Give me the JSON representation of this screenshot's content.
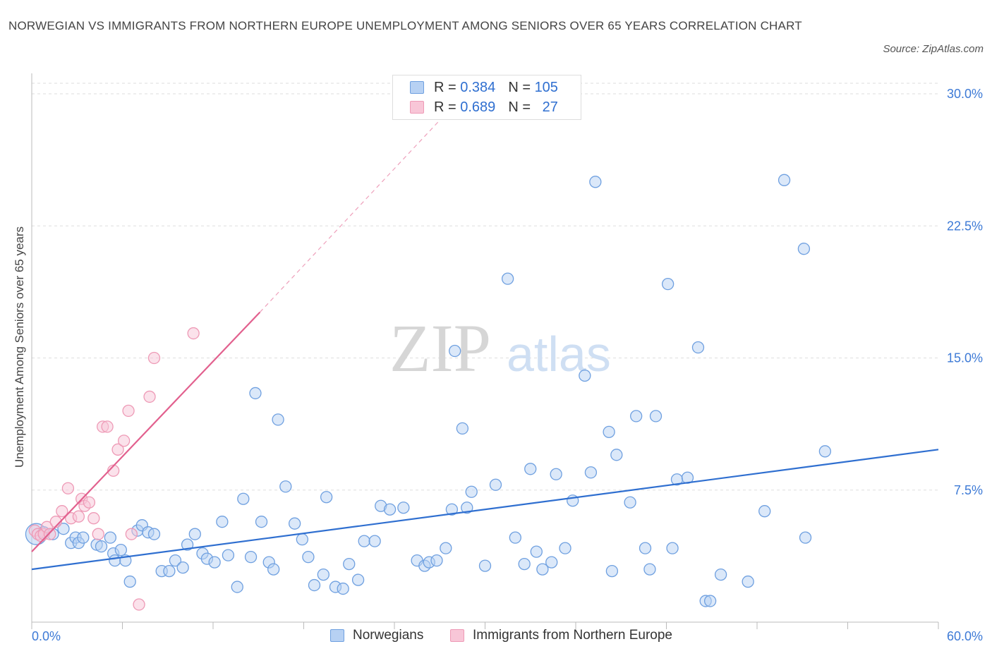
{
  "title": "NORWEGIAN VS IMMIGRANTS FROM NORTHERN EUROPE UNEMPLOYMENT AMONG SENIORS OVER 65 YEARS CORRELATION CHART",
  "source": "Source: ZipAtlas.com",
  "watermark": {
    "zip": "ZIP",
    "atlas": "atlas"
  },
  "legend": {
    "rows": [
      {
        "r_label": "R =",
        "r_value": "0.384",
        "n_label": "N =",
        "n_value": "105"
      },
      {
        "r_label": "R =",
        "r_value": "0.689",
        "n_label": "N =",
        "n_value": "27"
      }
    ]
  },
  "chart_data": {
    "type": "scatter",
    "title": "NORWEGIAN VS IMMIGRANTS FROM NORTHERN EUROPE UNEMPLOYMENT AMONG SENIORS OVER 65 YEARS CORRELATION CHART",
    "xlabel": "",
    "ylabel": "Unemployment Among Seniors over 65 years",
    "xlim": [
      0,
      60
    ],
    "ylim": [
      0,
      30
    ],
    "x_tick_labels": [
      "0.0%",
      "60.0%"
    ],
    "y_ticks": [
      7.5,
      15.0,
      22.5,
      30.0
    ],
    "y_tick_labels": [
      "7.5%",
      "15.0%",
      "22.5%",
      "30.0%"
    ],
    "grid": true,
    "legend_position": "top-center",
    "series": [
      {
        "name": "Norwegians",
        "color": "#6fa0e0",
        "fill": "#b7d1f3",
        "line_color": "#2f6fd0",
        "r": 0.384,
        "n": 105,
        "trend": {
          "x": [
            0,
            60
          ],
          "y": [
            3.0,
            9.8
          ]
        },
        "points": [
          [
            0.3,
            5.0
          ],
          [
            0.8,
            5.1
          ],
          [
            1.4,
            5.0
          ],
          [
            2.1,
            5.3
          ],
          [
            2.6,
            4.5
          ],
          [
            2.9,
            4.8
          ],
          [
            3.1,
            4.5
          ],
          [
            3.4,
            4.8
          ],
          [
            4.3,
            4.4
          ],
          [
            4.6,
            4.3
          ],
          [
            5.2,
            4.8
          ],
          [
            5.4,
            3.9
          ],
          [
            5.5,
            3.5
          ],
          [
            5.9,
            4.1
          ],
          [
            6.2,
            3.5
          ],
          [
            6.5,
            2.3
          ],
          [
            7.0,
            5.2
          ],
          [
            7.3,
            5.5
          ],
          [
            7.7,
            5.1
          ],
          [
            8.1,
            5.0
          ],
          [
            8.6,
            2.9
          ],
          [
            9.1,
            2.9
          ],
          [
            9.5,
            3.5
          ],
          [
            10.0,
            3.1
          ],
          [
            10.3,
            4.4
          ],
          [
            10.8,
            5.0
          ],
          [
            11.3,
            3.9
          ],
          [
            11.6,
            3.6
          ],
          [
            12.1,
            3.4
          ],
          [
            12.6,
            5.7
          ],
          [
            13.0,
            3.8
          ],
          [
            13.6,
            2.0
          ],
          [
            14.0,
            7.0
          ],
          [
            14.5,
            3.7
          ],
          [
            14.8,
            13.0
          ],
          [
            15.2,
            5.7
          ],
          [
            15.7,
            3.4
          ],
          [
            16.0,
            3.0
          ],
          [
            16.3,
            11.5
          ],
          [
            16.8,
            7.7
          ],
          [
            17.4,
            5.6
          ],
          [
            17.9,
            4.7
          ],
          [
            18.3,
            3.7
          ],
          [
            18.7,
            2.1
          ],
          [
            19.3,
            2.7
          ],
          [
            19.5,
            7.1
          ],
          [
            20.1,
            2.0
          ],
          [
            20.6,
            1.9
          ],
          [
            21.0,
            3.3
          ],
          [
            21.6,
            2.4
          ],
          [
            22.0,
            4.6
          ],
          [
            22.7,
            4.6
          ],
          [
            23.1,
            6.6
          ],
          [
            23.7,
            6.4
          ],
          [
            24.6,
            6.5
          ],
          [
            25.5,
            3.5
          ],
          [
            26.0,
            3.2
          ],
          [
            26.3,
            3.4
          ],
          [
            26.8,
            3.5
          ],
          [
            27.4,
            4.2
          ],
          [
            27.8,
            6.4
          ],
          [
            28.0,
            15.4
          ],
          [
            28.5,
            11.0
          ],
          [
            28.8,
            6.5
          ],
          [
            29.1,
            7.4
          ],
          [
            30.0,
            3.2
          ],
          [
            30.7,
            7.8
          ],
          [
            31.5,
            19.5
          ],
          [
            32.0,
            4.8
          ],
          [
            32.6,
            3.3
          ],
          [
            33.0,
            8.7
          ],
          [
            33.4,
            4.0
          ],
          [
            33.8,
            3.0
          ],
          [
            34.4,
            3.4
          ],
          [
            34.7,
            8.4
          ],
          [
            35.3,
            4.2
          ],
          [
            35.8,
            6.9
          ],
          [
            36.6,
            14.0
          ],
          [
            37.0,
            8.5
          ],
          [
            37.3,
            25.0
          ],
          [
            38.2,
            10.8
          ],
          [
            38.4,
            2.9
          ],
          [
            38.7,
            9.5
          ],
          [
            39.6,
            6.8
          ],
          [
            40.0,
            11.7
          ],
          [
            40.6,
            4.2
          ],
          [
            40.9,
            3.0
          ],
          [
            41.3,
            11.7
          ],
          [
            42.1,
            19.2
          ],
          [
            42.4,
            4.2
          ],
          [
            42.7,
            8.1
          ],
          [
            43.4,
            8.2
          ],
          [
            44.1,
            15.6
          ],
          [
            44.6,
            1.2
          ],
          [
            44.9,
            1.2
          ],
          [
            45.6,
            2.7
          ],
          [
            47.4,
            2.3
          ],
          [
            48.5,
            6.3
          ],
          [
            49.8,
            25.1
          ],
          [
            51.1,
            21.2
          ],
          [
            51.2,
            4.8
          ],
          [
            52.5,
            9.7
          ]
        ]
      },
      {
        "name": "Immigrants from Northern Europe",
        "color": "#ee9ab6",
        "fill": "#f8c6d7",
        "line_color": "#e2608e",
        "r": 0.689,
        "n": 27,
        "trend": {
          "x": [
            0,
            15.1
          ],
          "y": [
            4.0,
            17.6
          ]
        },
        "trend_dashed_extension": {
          "x": [
            15.1,
            27.0
          ],
          "y": [
            17.6,
            28.5
          ]
        },
        "points": [
          [
            0.2,
            5.2
          ],
          [
            0.4,
            5.0
          ],
          [
            0.6,
            4.9
          ],
          [
            0.8,
            5.0
          ],
          [
            1.0,
            5.4
          ],
          [
            1.2,
            5.0
          ],
          [
            1.6,
            5.7
          ],
          [
            2.0,
            6.3
          ],
          [
            2.4,
            7.6
          ],
          [
            2.6,
            5.9
          ],
          [
            3.1,
            6.0
          ],
          [
            3.3,
            7.0
          ],
          [
            3.5,
            6.6
          ],
          [
            3.8,
            6.8
          ],
          [
            4.1,
            5.9
          ],
          [
            4.4,
            5.0
          ],
          [
            4.7,
            11.1
          ],
          [
            5.0,
            11.1
          ],
          [
            5.4,
            8.6
          ],
          [
            5.7,
            9.8
          ],
          [
            6.1,
            10.3
          ],
          [
            6.4,
            12.0
          ],
          [
            6.6,
            5.0
          ],
          [
            7.1,
            1.0
          ],
          [
            7.8,
            12.8
          ],
          [
            8.1,
            15.0
          ],
          [
            10.7,
            16.4
          ]
        ]
      }
    ]
  },
  "bottom_legend": [
    {
      "label": "Norwegians"
    },
    {
      "label": "Immigrants from Northern Europe"
    }
  ]
}
